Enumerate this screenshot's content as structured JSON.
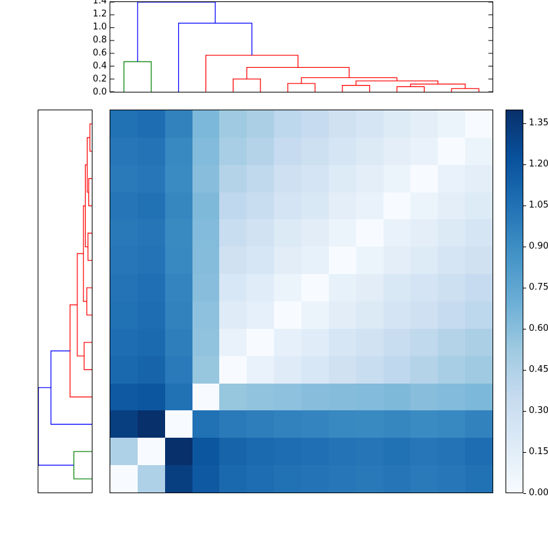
{
  "figure": {
    "background": "#ffffff",
    "title": ""
  },
  "chart_data": {
    "type": "heatmap",
    "subtype": "clustermap-with-dendrograms",
    "heatmap": {
      "n_rows": 14,
      "n_cols": 14,
      "vmin": 0.0,
      "vmax": 1.4,
      "colormap": "Blues",
      "colormap_anchors_rgb": [
        [
          247,
          251,
          255
        ],
        [
          222,
          235,
          247
        ],
        [
          198,
          219,
          239
        ],
        [
          158,
          202,
          225
        ],
        [
          107,
          174,
          214
        ],
        [
          66,
          146,
          198
        ],
        [
          33,
          113,
          181
        ],
        [
          8,
          81,
          156
        ],
        [
          8,
          48,
          107
        ]
      ],
      "matrix": [
        [
          1.05,
          1.07,
          0.96,
          0.64,
          0.52,
          0.47,
          0.39,
          0.35,
          0.28,
          0.24,
          0.18,
          0.14,
          0.08,
          0.0
        ],
        [
          1.02,
          1.04,
          0.93,
          0.62,
          0.48,
          0.43,
          0.35,
          0.3,
          0.24,
          0.19,
          0.14,
          0.1,
          0.0,
          0.08
        ],
        [
          1.0,
          1.02,
          0.91,
          0.6,
          0.43,
          0.37,
          0.29,
          0.25,
          0.18,
          0.14,
          0.08,
          0.0,
          0.1,
          0.14
        ],
        [
          1.03,
          1.05,
          0.94,
          0.63,
          0.38,
          0.33,
          0.25,
          0.21,
          0.14,
          0.1,
          0.0,
          0.08,
          0.14,
          0.18
        ],
        [
          1.01,
          1.03,
          0.92,
          0.62,
          0.33,
          0.27,
          0.19,
          0.15,
          0.08,
          0.0,
          0.1,
          0.14,
          0.19,
          0.24
        ],
        [
          1.02,
          1.04,
          0.93,
          0.61,
          0.28,
          0.23,
          0.15,
          0.11,
          0.0,
          0.08,
          0.14,
          0.18,
          0.24,
          0.28
        ],
        [
          1.04,
          1.06,
          0.95,
          0.6,
          0.22,
          0.16,
          0.08,
          0.0,
          0.11,
          0.15,
          0.21,
          0.25,
          0.3,
          0.35
        ],
        [
          1.05,
          1.07,
          0.96,
          0.58,
          0.17,
          0.12,
          0.0,
          0.08,
          0.15,
          0.19,
          0.25,
          0.29,
          0.35,
          0.39
        ],
        [
          1.07,
          1.09,
          0.98,
          0.57,
          0.1,
          0.0,
          0.12,
          0.16,
          0.23,
          0.27,
          0.33,
          0.37,
          0.43,
          0.47
        ],
        [
          1.1,
          1.12,
          1.0,
          0.55,
          0.0,
          0.1,
          0.17,
          0.22,
          0.28,
          0.33,
          0.38,
          0.43,
          0.48,
          0.52
        ],
        [
          1.18,
          1.2,
          1.05,
          0.0,
          0.55,
          0.57,
          0.58,
          0.6,
          0.61,
          0.62,
          0.63,
          0.6,
          0.62,
          0.64
        ],
        [
          1.32,
          1.4,
          0.0,
          1.05,
          1.0,
          0.98,
          0.96,
          0.95,
          0.93,
          0.92,
          0.94,
          0.91,
          0.93,
          0.96
        ],
        [
          0.45,
          0.0,
          1.4,
          1.2,
          1.12,
          1.09,
          1.07,
          1.06,
          1.04,
          1.03,
          1.05,
          1.02,
          1.04,
          1.07
        ],
        [
          0.0,
          0.45,
          1.32,
          1.18,
          1.1,
          1.07,
          1.05,
          1.04,
          1.02,
          1.01,
          1.03,
          1.0,
          1.02,
          1.05
        ]
      ]
    },
    "dendrogram": {
      "leaf_count": 14,
      "hmax": 1.4,
      "colors": {
        "b": "#0000ff",
        "g": "#008000",
        "r": "#ff0000"
      },
      "merges": [
        {
          "a": "L12",
          "b": "L13",
          "h": 0.05,
          "c": "r"
        },
        {
          "a": "L10",
          "b": "L11",
          "h": 0.08,
          "c": "r"
        },
        {
          "a": "M1",
          "b": "M0",
          "h": 0.12,
          "c": "r"
        },
        {
          "a": "L8",
          "b": "L9",
          "h": 0.1,
          "c": "r"
        },
        {
          "a": "M3",
          "b": "M2",
          "h": 0.17,
          "c": "r"
        },
        {
          "a": "L6",
          "b": "L7",
          "h": 0.13,
          "c": "r"
        },
        {
          "a": "M5",
          "b": "M4",
          "h": 0.22,
          "c": "r"
        },
        {
          "a": "L4",
          "b": "L5",
          "h": 0.2,
          "c": "r"
        },
        {
          "a": "M7",
          "b": "M6",
          "h": 0.38,
          "c": "r"
        },
        {
          "a": "L3",
          "b": "M8",
          "h": 0.57,
          "c": "r"
        },
        {
          "a": "L2",
          "b": "M9",
          "h": 1.07,
          "c": "b"
        },
        {
          "a": "L0",
          "b": "L1",
          "h": 0.47,
          "c": "g"
        },
        {
          "a": "M11",
          "b": "M10",
          "h": 1.4,
          "c": "b"
        }
      ]
    },
    "top_dendrogram": {
      "hmax": 1.4,
      "axis_ticks": [
        {
          "v": 0.0,
          "label": "0.0"
        },
        {
          "v": 0.2,
          "label": "0.2"
        },
        {
          "v": 0.4,
          "label": "0.4"
        },
        {
          "v": 0.6,
          "label": "0.6"
        },
        {
          "v": 0.8,
          "label": "0.8"
        },
        {
          "v": 1.0,
          "label": "1.0"
        },
        {
          "v": 1.2,
          "label": "1.2"
        },
        {
          "v": 1.4,
          "label": "1.4"
        }
      ]
    },
    "colorbar": {
      "vmin": 0.0,
      "vmax": 1.4,
      "ticks": [
        {
          "v": 0.0,
          "label": "0.00"
        },
        {
          "v": 0.15,
          "label": "0.15"
        },
        {
          "v": 0.3,
          "label": "0.30"
        },
        {
          "v": 0.45,
          "label": "0.45"
        },
        {
          "v": 0.6,
          "label": "0.60"
        },
        {
          "v": 0.75,
          "label": "0.75"
        },
        {
          "v": 0.9,
          "label": "0.90"
        },
        {
          "v": 1.05,
          "label": "1.05"
        },
        {
          "v": 1.2,
          "label": "1.20"
        },
        {
          "v": 1.35,
          "label": "1.35"
        }
      ]
    }
  }
}
